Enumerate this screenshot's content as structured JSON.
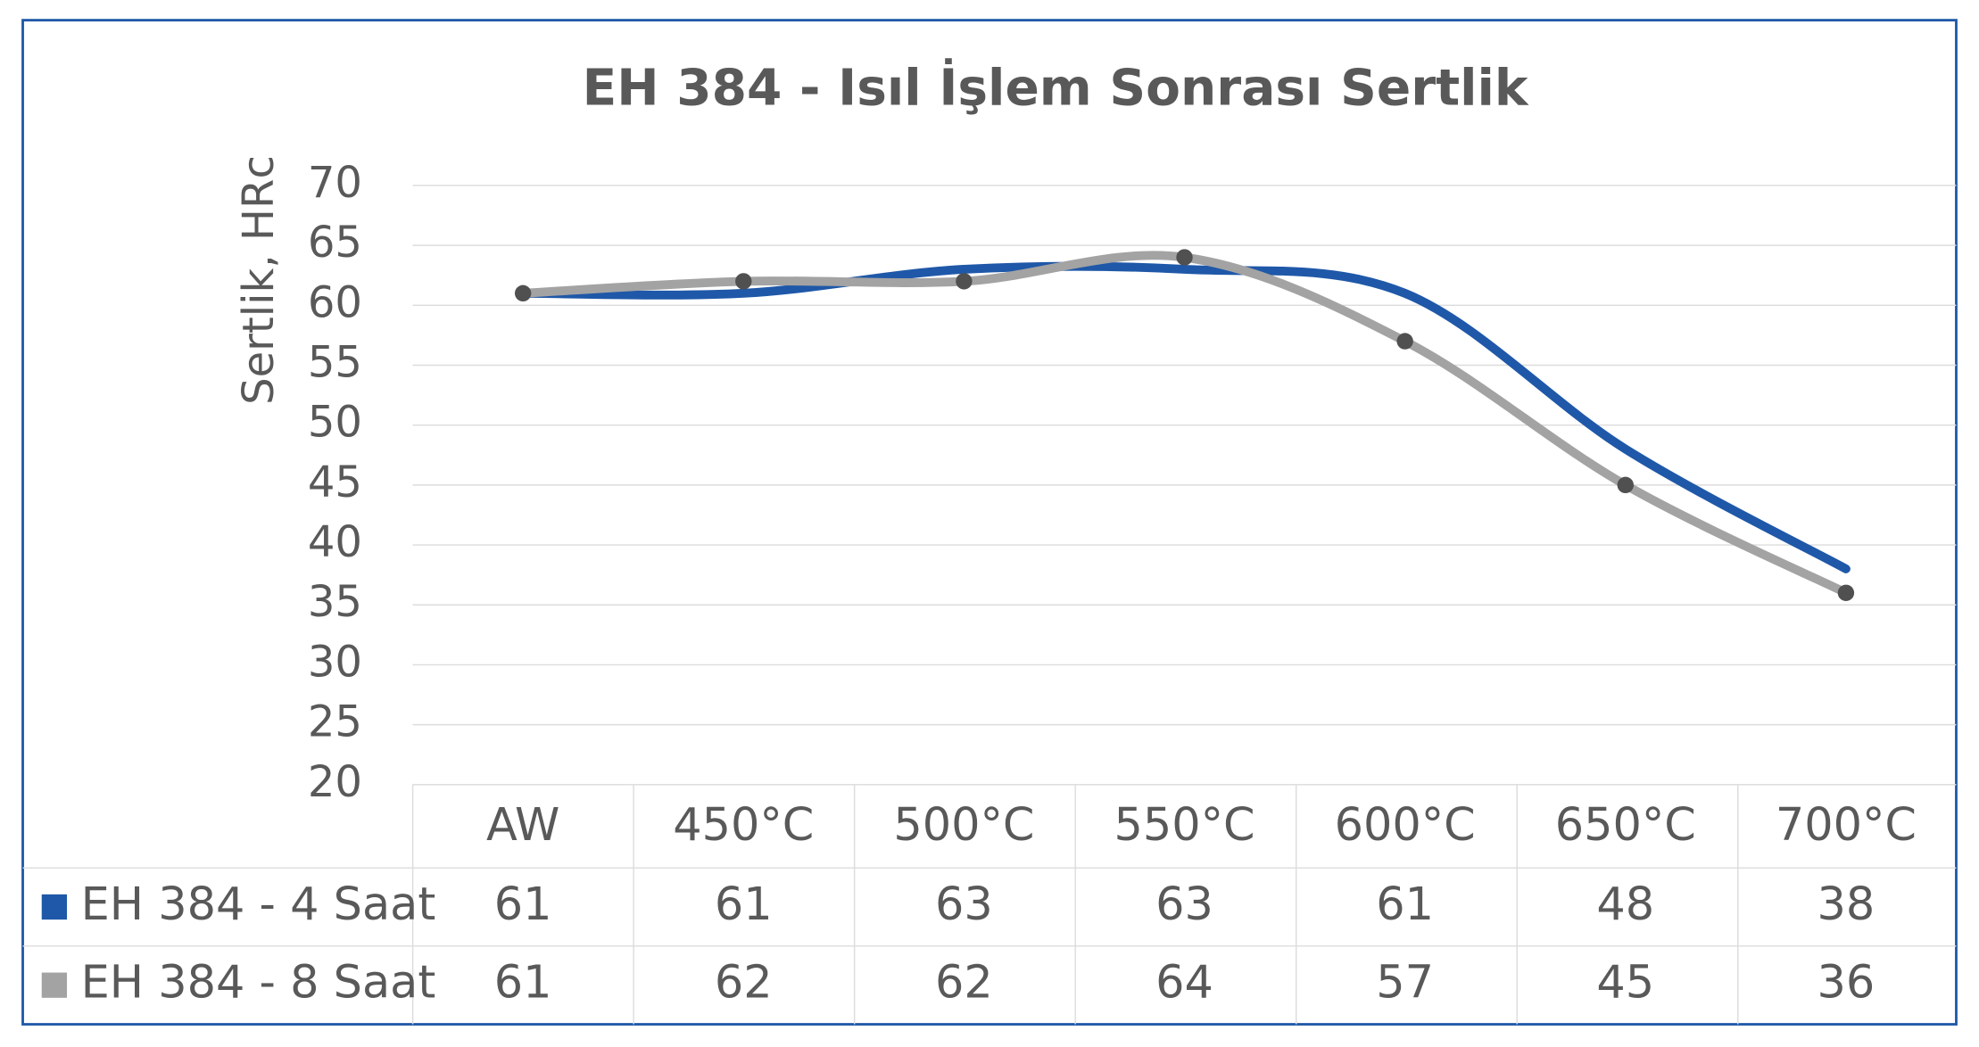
{
  "chart_data": {
    "type": "line",
    "title": "EH 384 - Isıl İşlem Sonrası Sertlik",
    "y_label": "Sertlik, HRc",
    "categories": [
      "AW",
      "450°C",
      "500°C",
      "550°C",
      "600°C",
      "650°C",
      "700°C"
    ],
    "series": [
      {
        "name": "EH 384 - 4 Saat",
        "color": "#1f58a8",
        "marker": false,
        "values": [
          61,
          61,
          63,
          63,
          61,
          48,
          38
        ]
      },
      {
        "name": "EH 384 - 8 Saat",
        "color": "#a3a3a3",
        "marker": true,
        "marker_color": "#505050",
        "values": [
          61,
          62,
          62,
          64,
          57,
          45,
          36
        ]
      }
    ],
    "ylim": [
      20,
      70
    ],
    "yticks": [
      20,
      25,
      30,
      35,
      40,
      45,
      50,
      55,
      60,
      65,
      70
    ],
    "grid": true,
    "legend": "data-table"
  }
}
